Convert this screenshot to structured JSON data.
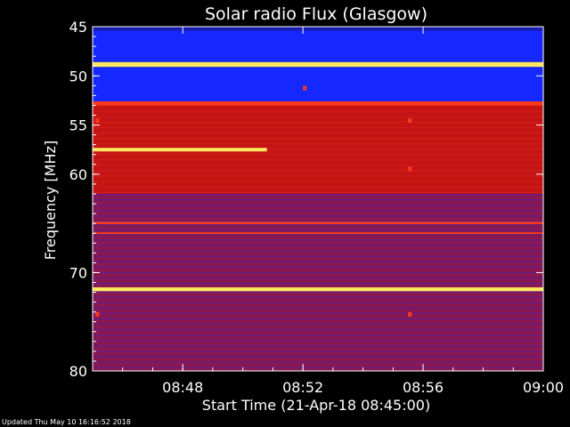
{
  "chart_data": {
    "type": "heatmap",
    "title": "Solar radio Flux (Glasgow)",
    "xlabel": "Start Time (21-Apr-18 08:45:00)",
    "ylabel": "Frequency [MHz]",
    "x_range_minutes": [
      0,
      15
    ],
    "x_ticks": [
      {
        "minute": 3,
        "label": "08:48"
      },
      {
        "minute": 7,
        "label": "08:52"
      },
      {
        "minute": 11,
        "label": "08:56"
      },
      {
        "minute": 15,
        "label": "09:00"
      }
    ],
    "y_range_mhz": [
      45,
      80
    ],
    "y_ticks": [
      {
        "value": 45,
        "label": "45"
      },
      {
        "value": 50,
        "label": "50"
      },
      {
        "value": 55,
        "label": "55"
      },
      {
        "value": 60,
        "label": "60"
      },
      {
        "value": 70,
        "label": "70"
      },
      {
        "value": 80,
        "label": "80"
      }
    ],
    "frequency_bands": [
      {
        "from": 45.0,
        "to": 45.4,
        "level": "low"
      },
      {
        "from": 45.4,
        "to": 48.6,
        "level": "blue"
      },
      {
        "from": 48.6,
        "to": 49.1,
        "level": "peak"
      },
      {
        "from": 49.1,
        "to": 52.6,
        "level": "blue"
      },
      {
        "from": 52.6,
        "to": 53.0,
        "level": "high"
      },
      {
        "from": 53.0,
        "to": 62.0,
        "level": "red"
      },
      {
        "from": 62.0,
        "to": 64.8,
        "level": "mixed"
      },
      {
        "from": 64.8,
        "to": 65.1,
        "level": "high"
      },
      {
        "from": 65.1,
        "to": 65.9,
        "level": "mixed"
      },
      {
        "from": 65.9,
        "to": 66.1,
        "level": "high"
      },
      {
        "from": 66.1,
        "to": 71.5,
        "level": "mixed"
      },
      {
        "from": 71.5,
        "to": 71.9,
        "level": "peak"
      },
      {
        "from": 71.9,
        "to": 80.0,
        "level": "mixed"
      }
    ],
    "events": [
      {
        "start_minute": 0.0,
        "end_minute": 5.8,
        "freq_mhz": 57.5,
        "level": "peak"
      },
      {
        "start_minute": 7.0,
        "end_minute": 7.05,
        "freq_mhz": 51.2,
        "level": "high"
      },
      {
        "start_minute": 10.5,
        "end_minute": 10.6,
        "freq_mhz": 54.5,
        "level": "high"
      },
      {
        "start_minute": 10.5,
        "end_minute": 10.6,
        "freq_mhz": 59.4,
        "level": "high"
      },
      {
        "start_minute": 10.5,
        "end_minute": 10.6,
        "freq_mhz": 74.2,
        "level": "high"
      },
      {
        "start_minute": 0.1,
        "end_minute": 0.2,
        "freq_mhz": 54.5,
        "level": "high"
      },
      {
        "start_minute": 0.1,
        "end_minute": 0.2,
        "freq_mhz": 74.2,
        "level": "high"
      }
    ],
    "colors": {
      "low": "#1a1cb0",
      "blue": "#1428ff",
      "red": "#c41414",
      "mixed": "#8a1850",
      "high": "#ff3a1a",
      "peak": "#ffe860"
    },
    "grid": false
  },
  "footer": "Updated Thu May 10 16:16:52 2018"
}
